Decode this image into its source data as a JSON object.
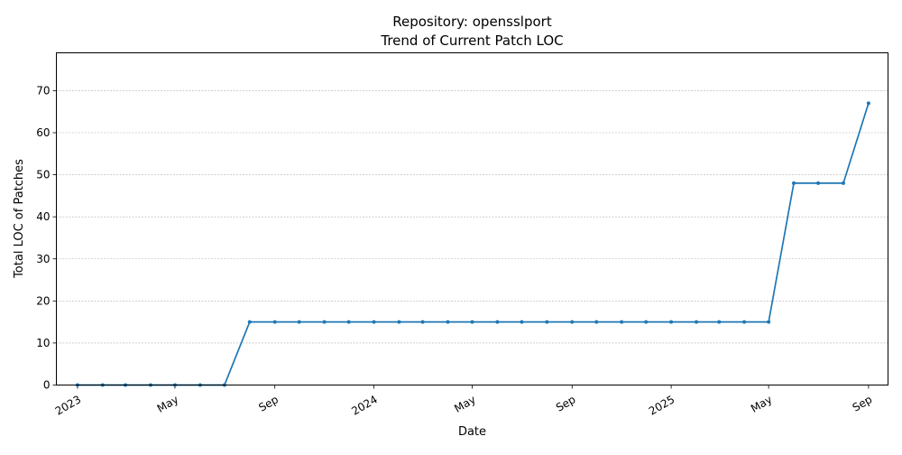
{
  "chart_data": {
    "type": "line",
    "title": "Repository: opensslport",
    "subtitle": "Trend of Current Patch LOC",
    "xlabel": "Date",
    "ylabel": "Total LOC of Patches",
    "ylim": [
      0,
      79
    ],
    "xlim": [
      "2022-12-06",
      "2025-09-25"
    ],
    "grid": "y-dashed",
    "color": "#1f77b4",
    "y_ticks": [
      0,
      10,
      20,
      30,
      40,
      50,
      60,
      70
    ],
    "x_ticks": [
      {
        "date": "2023-01-01",
        "label": "2023"
      },
      {
        "date": "2023-05-01",
        "label": "May"
      },
      {
        "date": "2023-09-01",
        "label": "Sep"
      },
      {
        "date": "2024-01-01",
        "label": "2024"
      },
      {
        "date": "2024-05-01",
        "label": "May"
      },
      {
        "date": "2024-09-01",
        "label": "Sep"
      },
      {
        "date": "2025-01-01",
        "label": "2025"
      },
      {
        "date": "2025-05-01",
        "label": "May"
      },
      {
        "date": "2025-09-01",
        "label": "Sep"
      }
    ],
    "series": [
      {
        "x": [
          "2023-01-01",
          "2023-02-01",
          "2023-03-01",
          "2023-04-01",
          "2023-05-01",
          "2023-06-01",
          "2023-07-01",
          "2023-08-01",
          "2023-09-01",
          "2023-10-01",
          "2023-11-01",
          "2023-12-01",
          "2024-01-01",
          "2024-02-01",
          "2024-03-01",
          "2024-04-01",
          "2024-05-01",
          "2024-06-01",
          "2024-07-01",
          "2024-08-01",
          "2024-09-01",
          "2024-10-01",
          "2024-11-01",
          "2024-12-01",
          "2025-01-01",
          "2025-02-01",
          "2025-03-01",
          "2025-04-01",
          "2025-05-01",
          "2025-06-01",
          "2025-07-01",
          "2025-08-01",
          "2025-09-01"
        ],
        "values": [
          0,
          0,
          0,
          0,
          0,
          0,
          0,
          15,
          15,
          15,
          15,
          15,
          15,
          15,
          15,
          15,
          15,
          15,
          15,
          15,
          15,
          15,
          15,
          15,
          15,
          15,
          15,
          15,
          15,
          48,
          48,
          48,
          67
        ]
      }
    ]
  }
}
